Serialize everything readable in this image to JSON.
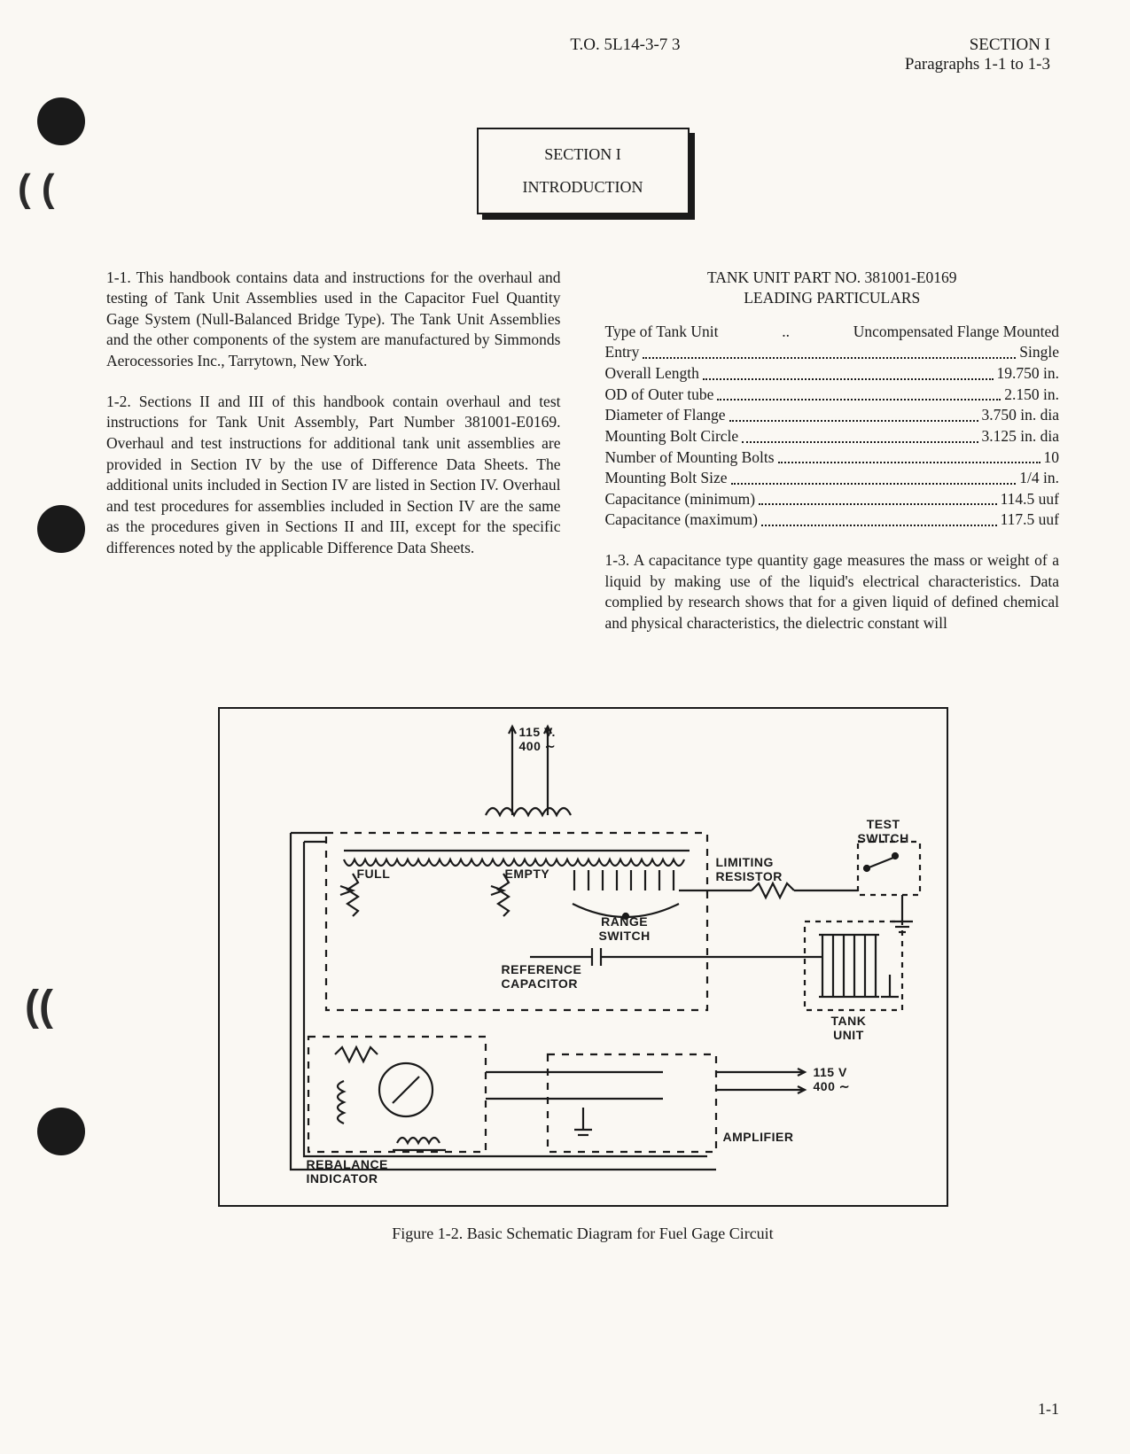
{
  "header": {
    "to": "T.O. 5L14-3-7 3",
    "section": "SECTION I",
    "paragraphs": "Paragraphs 1-1 to 1-3"
  },
  "section_box": {
    "line1": "SECTION I",
    "line2": "INTRODUCTION"
  },
  "left_col": {
    "p1": "1-1. This handbook contains data and instructions for the overhaul and testing of Tank Unit Assemblies used in the Capacitor Fuel Quantity Gage System (Null-Balanced Bridge Type). The Tank Unit Assemblies and the other components of the system are manufactured by Simmonds Aerocessories Inc., Tarrytown, New York.",
    "p2": "1-2. Sections II and III of this handbook contain overhaul and test instructions for Tank Unit Assembly, Part Number 381001-E0169. Overhaul and test instructions for additional tank unit assemblies are provided in Section IV by the use of Difference Data Sheets. The additional units included in Section IV are listed in Section IV. Overhaul and test procedures for assemblies included in Section IV are the same as the procedures given in Sections II and III, except for the specific differences noted by the applicable Difference Data Sheets."
  },
  "right_col": {
    "part_header_1": "TANK UNIT PART NO. 381001-E0169",
    "part_header_2": "LEADING PARTICULARS",
    "rows": [
      {
        "label": "Type of Tank Unit",
        "value": "Uncompensated Flange Mounted",
        "dots": false
      },
      {
        "label": "Entry",
        "value": "Single",
        "dots": true
      },
      {
        "label": "Overall Length",
        "value": "19.750 in.",
        "dots": true
      },
      {
        "label": "OD of Outer tube",
        "value": "2.150 in.",
        "dots": true
      },
      {
        "label": "Diameter of Flange",
        "value": "3.750 in. dia",
        "dots": true
      },
      {
        "label": "Mounting Bolt Circle",
        "value": "3.125 in. dia",
        "dots": true
      },
      {
        "label": "Number of Mounting Bolts",
        "value": "10",
        "dots": true
      },
      {
        "label": "Mounting Bolt Size",
        "value": "1/4 in.",
        "dots": true
      },
      {
        "label": "Capacitance (minimum)",
        "value": "114.5 uuf",
        "dots": true
      },
      {
        "label": "Capacitance (maximum)",
        "value": "117.5 uuf",
        "dots": true
      }
    ],
    "p3": "1-3. A capacitance type quantity gage measures the mass or weight of a liquid by making use of the liquid's electrical characteristics. Data complied by research shows that for a given liquid of defined chemical and physical characteristics, the dielectric constant will"
  },
  "figure": {
    "caption": "Figure 1-2. Basic Schematic Diagram for Fuel Gage Circuit",
    "labels": {
      "volts_top": "115 V.\n400 ∼",
      "full": "FULL",
      "empty": "EMPTY",
      "range_switch": "RANGE\nSWITCH",
      "limiting_resistor": "LIMITING\nRESISTOR",
      "test_switch": "TEST\nSWITCH",
      "reference_capacitor": "REFERENCE\nCAPACITOR",
      "tank_unit": "TANK\nUNIT",
      "volts_right": "115 V\n400 ∼",
      "amplifier": "AMPLIFIER",
      "rebalance_indicator": "REBALANCE\nINDICATOR"
    }
  },
  "page_number": "1-1"
}
